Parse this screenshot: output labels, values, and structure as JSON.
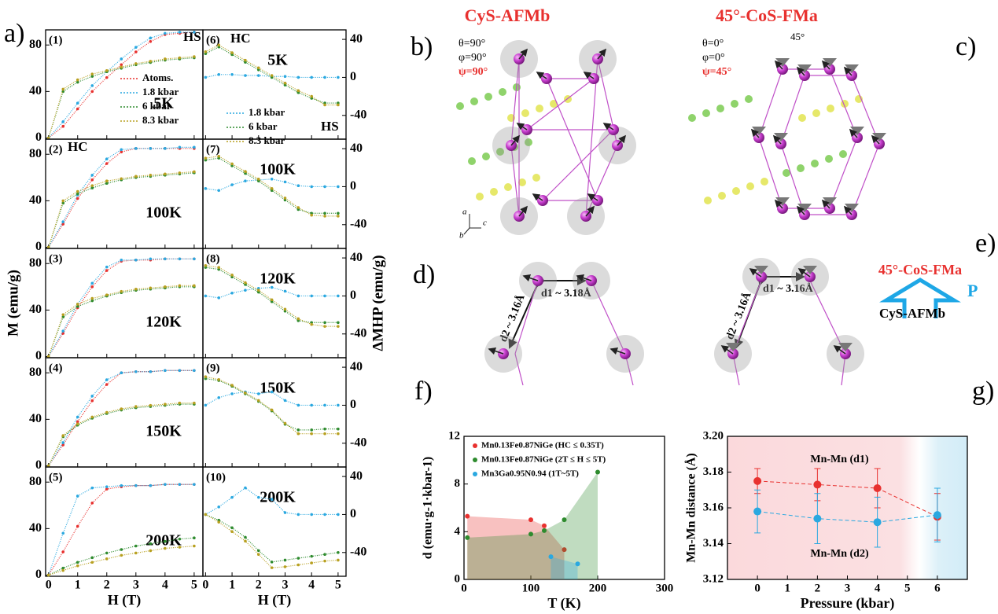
{
  "panel_labels": {
    "a": "a)",
    "b": "b)",
    "c": "c)",
    "d": "d)",
    "e": "e)",
    "f": "f)",
    "g": "g)"
  },
  "structures": {
    "left_title": "CyS-AFMb",
    "right_title": "45°-CoS-FMa",
    "left_angles": [
      "θ=90°",
      "φ=90°",
      "ψ=90°"
    ],
    "right_angles": [
      "θ=0°",
      "φ=0°",
      "ψ=45°"
    ],
    "tilt": "45°",
    "axes": [
      "a",
      "b",
      "c"
    ],
    "d_left": [
      "d1 ~ 3.18Å",
      "d2 ~ 3.16Å"
    ],
    "d_right": [
      "d1 ~ 3.16Å",
      "d2 ~ 3.16Å"
    ]
  },
  "transition": {
    "to": "45°-CoS-FMa",
    "pressure": "P",
    "from": "CyS-AFMb"
  },
  "chart_data": [
    {
      "type": "line",
      "label": "(1)",
      "temperature": "5K",
      "legend": true,
      "annotations": [
        "HS",
        "HC"
      ],
      "x": [
        0,
        0.5,
        1,
        1.5,
        2,
        2.5,
        3,
        3.5,
        4,
        4.5,
        5
      ],
      "xlim": [
        -0.1,
        5.3
      ],
      "ylim": [
        -1,
        93
      ],
      "xticks": [
        0,
        1,
        2,
        3,
        4,
        5
      ],
      "yticks": [
        0,
        40,
        80
      ],
      "series": [
        {
          "name": "Atoms.",
          "color": "#e8312f",
          "values": [
            0,
            10,
            25,
            40,
            52,
            63,
            74,
            83,
            89,
            90,
            91
          ]
        },
        {
          "name": "1.8 kbar",
          "color": "#2aa8e0",
          "values": [
            0,
            14,
            30,
            45,
            57,
            68,
            78,
            86,
            90,
            91,
            91
          ]
        },
        {
          "name": "6 kbar",
          "color": "#2e8b2e",
          "values": [
            0,
            40,
            48,
            53,
            57,
            60,
            63,
            65,
            67,
            68,
            69
          ]
        },
        {
          "name": "8.3 kbar",
          "color": "#b8a020",
          "values": [
            0,
            42,
            50,
            55,
            58,
            61,
            64,
            66,
            68,
            69,
            70
          ]
        }
      ]
    },
    {
      "type": "line",
      "label": "(2)",
      "temperature": "100K",
      "x": [
        0,
        0.5,
        1,
        1.5,
        2,
        2.5,
        3,
        3.5,
        4,
        4.5,
        5
      ],
      "xlim": [
        -0.1,
        5.3
      ],
      "ylim": [
        -1,
        93
      ],
      "xticks": [
        0,
        1,
        2,
        3,
        4,
        5
      ],
      "yticks": [
        0,
        40,
        80
      ],
      "series": [
        {
          "name": "Atoms.",
          "color": "#e8312f",
          "values": [
            0,
            20,
            42,
            58,
            72,
            82,
            85,
            85,
            85,
            85,
            85
          ]
        },
        {
          "name": "1.8 kbar",
          "color": "#2aa8e0",
          "values": [
            0,
            22,
            45,
            62,
            76,
            84,
            85,
            85,
            85,
            86,
            86
          ]
        },
        {
          "name": "6 kbar",
          "color": "#2e8b2e",
          "values": [
            0,
            38,
            46,
            51,
            55,
            58,
            60,
            61,
            62,
            63,
            64
          ]
        },
        {
          "name": "8.3 kbar",
          "color": "#b8a020",
          "values": [
            0,
            40,
            48,
            53,
            57,
            59,
            61,
            62,
            63,
            64,
            65
          ]
        }
      ]
    },
    {
      "type": "line",
      "label": "(3)",
      "temperature": "120K",
      "ylabel": "M (emu/g)",
      "x": [
        0,
        0.5,
        1,
        1.5,
        2,
        2.5,
        3,
        3.5,
        4,
        4.5,
        5
      ],
      "xlim": [
        -0.1,
        5.3
      ],
      "ylim": [
        -1,
        93
      ],
      "xticks": [
        0,
        1,
        2,
        3,
        4,
        5
      ],
      "yticks": [
        0,
        40,
        80
      ],
      "series": [
        {
          "name": "Atoms.",
          "color": "#e8312f",
          "values": [
            0,
            20,
            42,
            60,
            74,
            82,
            83,
            83,
            84,
            84,
            84
          ]
        },
        {
          "name": "1.8 kbar",
          "color": "#2aa8e0",
          "values": [
            0,
            22,
            45,
            63,
            77,
            83,
            83,
            84,
            84,
            84,
            84
          ]
        },
        {
          "name": "6 kbar",
          "color": "#2e8b2e",
          "values": [
            0,
            34,
            43,
            48,
            52,
            55,
            57,
            58,
            59,
            60,
            60
          ]
        },
        {
          "name": "8.3 kbar",
          "color": "#b8a020",
          "values": [
            0,
            36,
            45,
            50,
            53,
            56,
            58,
            59,
            60,
            61,
            61
          ]
        }
      ]
    },
    {
      "type": "line",
      "label": "(4)",
      "temperature": "150K",
      "x": [
        0,
        0.5,
        1,
        1.5,
        2,
        2.5,
        3,
        3.5,
        4,
        4.5,
        5
      ],
      "xlim": [
        -0.1,
        5.3
      ],
      "ylim": [
        -1,
        93
      ],
      "xticks": [
        0,
        1,
        2,
        3,
        4,
        5
      ],
      "yticks": [
        0,
        40,
        80
      ],
      "series": [
        {
          "name": "Atoms.",
          "color": "#e8312f",
          "values": [
            0,
            18,
            38,
            56,
            70,
            80,
            81,
            81,
            82,
            82,
            82
          ]
        },
        {
          "name": "1.8 kbar",
          "color": "#2aa8e0",
          "values": [
            0,
            20,
            42,
            60,
            74,
            80,
            81,
            81,
            82,
            82,
            82
          ]
        },
        {
          "name": "6 kbar",
          "color": "#2e8b2e",
          "values": [
            0,
            25,
            35,
            41,
            45,
            48,
            50,
            51,
            52,
            53,
            53
          ]
        },
        {
          "name": "8.3 kbar",
          "color": "#b8a020",
          "values": [
            0,
            26,
            36,
            42,
            46,
            49,
            51,
            52,
            53,
            54,
            54
          ]
        }
      ]
    },
    {
      "type": "line",
      "label": "(5)",
      "temperature": "200K",
      "xlabel": "H (T)",
      "x": [
        0,
        0.5,
        1,
        1.5,
        2,
        2.5,
        3,
        3.5,
        4,
        4.5,
        5
      ],
      "xlim": [
        -0.1,
        5.3
      ],
      "ylim": [
        -1,
        93
      ],
      "xticks": [
        0,
        1,
        2,
        3,
        4,
        5
      ],
      "yticks": [
        0,
        40,
        80
      ],
      "series": [
        {
          "name": "Atoms.",
          "color": "#e8312f",
          "values": [
            0,
            20,
            42,
            62,
            74,
            76,
            77,
            77,
            78,
            78,
            78
          ]
        },
        {
          "name": "1.8 kbar",
          "color": "#2aa8e0",
          "values": [
            0,
            36,
            68,
            75,
            76,
            77,
            77,
            77,
            78,
            78,
            78
          ]
        },
        {
          "name": "6 kbar",
          "color": "#2e8b2e",
          "values": [
            0,
            6,
            11,
            15,
            19,
            22,
            25,
            27,
            29,
            31,
            32
          ]
        },
        {
          "name": "8.3 kbar",
          "color": "#b8a020",
          "values": [
            0,
            4,
            8,
            11,
            14,
            17,
            19,
            21,
            23,
            24,
            25
          ]
        }
      ]
    },
    {
      "type": "line",
      "label": "(6)",
      "temperature": "5K",
      "legend": true,
      "annotations": [
        "HC",
        "HS"
      ],
      "x": [
        0,
        0.5,
        1,
        1.5,
        2,
        2.5,
        3,
        3.5,
        4,
        4.5,
        5
      ],
      "xlim": [
        -0.1,
        5.3
      ],
      "ylim": [
        -65,
        50
      ],
      "xticks": [
        0,
        1,
        2,
        3,
        4,
        5
      ],
      "yticks": [
        -40,
        0,
        40
      ],
      "series": [
        {
          "name": "1.8 kbar",
          "color": "#2aa8e0",
          "values": [
            0,
            3,
            3,
            2,
            2,
            1,
            1,
            0,
            0,
            0,
            0
          ]
        },
        {
          "name": "6 kbar",
          "color": "#2e8b2e",
          "values": [
            25,
            32,
            24,
            16,
            8,
            0,
            -8,
            -16,
            -22,
            -27,
            -27
          ]
        },
        {
          "name": "8.3 kbar",
          "color": "#b8a020",
          "values": [
            27,
            34,
            26,
            18,
            10,
            2,
            -6,
            -14,
            -20,
            -29,
            -29
          ]
        }
      ]
    },
    {
      "type": "line",
      "label": "(7)",
      "temperature": "100K",
      "x": [
        0,
        0.5,
        1,
        1.5,
        2,
        2.5,
        3,
        3.5,
        4,
        4.5,
        5
      ],
      "xlim": [
        -0.1,
        5.3
      ],
      "ylim": [
        -65,
        50
      ],
      "xticks": [
        0,
        1,
        2,
        3,
        4,
        5
      ],
      "yticks": [
        -40,
        0,
        40
      ],
      "series": [
        {
          "name": "1.8 kbar",
          "color": "#2aa8e0",
          "values": [
            -2,
            -4,
            2,
            6,
            7,
            8,
            5,
            1,
            0,
            0,
            0
          ]
        },
        {
          "name": "6 kbar",
          "color": "#2e8b2e",
          "values": [
            28,
            30,
            22,
            14,
            6,
            -4,
            -14,
            -24,
            -28,
            -28,
            -28
          ]
        },
        {
          "name": "8.3 kbar",
          "color": "#b8a020",
          "values": [
            30,
            32,
            24,
            16,
            8,
            -2,
            -12,
            -22,
            -30,
            -31,
            -31
          ]
        }
      ]
    },
    {
      "type": "line",
      "label": "(8)",
      "temperature": "120K",
      "ylabel": "ΔMHP (emu/g)",
      "x": [
        0,
        0.5,
        1,
        1.5,
        2,
        2.5,
        3,
        3.5,
        4,
        4.5,
        5
      ],
      "xlim": [
        -0.1,
        5.3
      ],
      "ylim": [
        -65,
        50
      ],
      "xticks": [
        0,
        1,
        2,
        3,
        4,
        5
      ],
      "yticks": [
        -40,
        0,
        40
      ],
      "series": [
        {
          "name": "1.8 kbar",
          "color": "#2aa8e0",
          "values": [
            0,
            -2,
            3,
            6,
            8,
            9,
            5,
            0,
            0,
            0,
            0
          ]
        },
        {
          "name": "6 kbar",
          "color": "#2e8b2e",
          "values": [
            30,
            28,
            20,
            12,
            4,
            -6,
            -16,
            -26,
            -28,
            -28,
            -28
          ]
        },
        {
          "name": "8.3 kbar",
          "color": "#b8a020",
          "values": [
            32,
            30,
            22,
            14,
            6,
            -4,
            -14,
            -24,
            -30,
            -32,
            -32
          ]
        }
      ]
    },
    {
      "type": "line",
      "label": "(9)",
      "temperature": "150K",
      "x": [
        0,
        0.5,
        1,
        1.5,
        2,
        2.5,
        3,
        3.5,
        4,
        4.5,
        5
      ],
      "xlim": [
        -0.1,
        5.3
      ],
      "ylim": [
        -65,
        50
      ],
      "xticks": [
        0,
        1,
        2,
        3,
        4,
        5
      ],
      "yticks": [
        -40,
        0,
        40
      ],
      "series": [
        {
          "name": "1.8 kbar",
          "color": "#2aa8e0",
          "values": [
            0,
            8,
            12,
            14,
            12,
            14,
            5,
            0,
            0,
            0,
            0
          ]
        },
        {
          "name": "6 kbar",
          "color": "#2e8b2e",
          "values": [
            28,
            26,
            20,
            12,
            4,
            -6,
            -20,
            -26,
            -26,
            -25,
            -25
          ]
        },
        {
          "name": "8.3 kbar",
          "color": "#b8a020",
          "values": [
            30,
            27,
            21,
            13,
            5,
            -5,
            -19,
            -30,
            -30,
            -30,
            -30
          ]
        }
      ]
    },
    {
      "type": "line",
      "label": "(10)",
      "temperature": "200K",
      "xlabel": "H (T)",
      "x": [
        0,
        0.5,
        1,
        1.5,
        2,
        2.5,
        3,
        3.5,
        4,
        4.5,
        5
      ],
      "xlim": [
        -0.1,
        5.3
      ],
      "ylim": [
        -65,
        50
      ],
      "xticks": [
        0,
        1,
        2,
        3,
        4,
        5
      ],
      "yticks": [
        -40,
        0,
        40
      ],
      "series": [
        {
          "name": "1.8 kbar",
          "color": "#2aa8e0",
          "values": [
            0,
            8,
            18,
            28,
            18,
            16,
            2,
            0,
            0,
            0,
            0
          ]
        },
        {
          "name": "6 kbar",
          "color": "#2e8b2e",
          "values": [
            0,
            -6,
            -14,
            -24,
            -38,
            -50,
            -48,
            -46,
            -44,
            -42,
            -40
          ]
        },
        {
          "name": "8.3 kbar",
          "color": "#b8a020",
          "values": [
            0,
            -8,
            -18,
            -28,
            -42,
            -56,
            -55,
            -53,
            -51,
            -49,
            -48
          ]
        }
      ]
    },
    {
      "type": "scatter",
      "xlabel": "T (K)",
      "ylabel": "d (emu·g-1·kbar-1)",
      "legend": true,
      "xlim": [
        0,
        300
      ],
      "ylim": [
        0,
        12
      ],
      "xticks": [
        0,
        100,
        200,
        300
      ],
      "yticks": [
        0,
        4,
        8,
        12
      ],
      "series": [
        {
          "name": "Mn0.13Fe0.87NiGe (HC ≤ 0.35T)",
          "color": "#e8312f",
          "x": [
            5,
            100,
            120,
            150
          ],
          "values": [
            5.3,
            5,
            4.5,
            2.5
          ]
        },
        {
          "name": "Mn0.13Fe0.87NiGe (2T ≤ H ≤ 5T)",
          "color": "#2e8b2e",
          "x": [
            5,
            100,
            120,
            150,
            200
          ],
          "values": [
            3.5,
            3.8,
            4.1,
            5,
            9
          ]
        },
        {
          "name": "Mn3Ga0.95N0.94 (1T~5T)",
          "color": "#2aa8e0",
          "x": [
            130,
            170
          ],
          "values": [
            1.9,
            1.3
          ]
        }
      ]
    },
    {
      "type": "errorbar",
      "xlabel": "Pressure (kbar)",
      "ylabel": "Mn-Mn distance (Å)",
      "x": [
        0,
        2,
        4,
        6
      ],
      "xlim": [
        -1,
        7
      ],
      "ylim": [
        3.12,
        3.2
      ],
      "xticks": [
        0,
        1,
        2,
        3,
        4,
        5,
        6
      ],
      "yticks": [
        3.12,
        3.14,
        3.16,
        3.18,
        {
          "value": 3.2,
          "label": "3.20"
        }
      ],
      "series": [
        {
          "name": "Mn-Mn (d1)",
          "color": "#e8312f",
          "values": [
            3.175,
            3.173,
            3.171,
            3.155
          ],
          "errors": [
            0.007,
            0.009,
            0.011,
            0.013
          ]
        },
        {
          "name": "Mn-Mn (d2)",
          "color": "#2aa8e0",
          "values": [
            3.158,
            3.154,
            3.152,
            3.156
          ],
          "errors": [
            0.012,
            0.014,
            0.014,
            0.015
          ]
        }
      ]
    }
  ]
}
